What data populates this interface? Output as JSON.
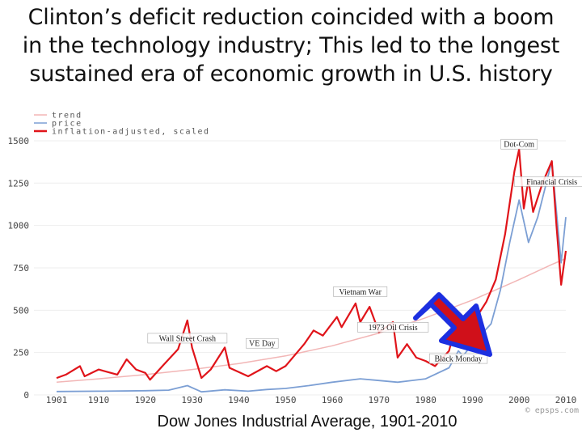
{
  "title": {
    "line1": "Clinton’s deficit reduction coincided with a boom",
    "line2": "in the technology industry; This led to the longest",
    "line3": "sustained era of economic growth in U.S. history"
  },
  "caption": "Dow Jones Industrial Average, 1901-2010",
  "credit": "© epsps.com",
  "colors": {
    "trend": "#f2b6b6",
    "price": "#7c9fd4",
    "inflation": "#e0141a",
    "arrow_fill": "#d0101a",
    "arrow_border": "#1c2fe0"
  },
  "chart_data": {
    "type": "line",
    "title": "Dow Jones Industrial Average, 1901-2010",
    "xlim": [
      1901,
      2010
    ],
    "ylim": [
      0,
      1600
    ],
    "x_ticks": [
      1901,
      1910,
      1920,
      1930,
      1940,
      1950,
      1960,
      1970,
      1980,
      1990,
      2000,
      2010
    ],
    "x_tick_labels": [
      "1901",
      "1910",
      "1920",
      "1930",
      "1940",
      "1950",
      "1960",
      "1970",
      "1980",
      "1990",
      "2000",
      "2010"
    ],
    "y_ticks": [
      0,
      250,
      500,
      750,
      1000,
      1250,
      1500
    ],
    "y_tick_labels": [
      "0",
      "250",
      "500",
      "750",
      "1000",
      "1250",
      "1500"
    ],
    "legend": {
      "position": "top-left",
      "entries": [
        "trend",
        "price",
        "inflation-adjusted, scaled"
      ]
    },
    "series": [
      {
        "name": "trend",
        "points": [
          [
            1901,
            75
          ],
          [
            1910,
            95
          ],
          [
            1920,
            120
          ],
          [
            1930,
            150
          ],
          [
            1940,
            185
          ],
          [
            1950,
            230
          ],
          [
            1960,
            290
          ],
          [
            1970,
            365
          ],
          [
            1980,
            455
          ],
          [
            1990,
            560
          ],
          [
            2000,
            680
          ],
          [
            2007,
            770
          ],
          [
            2010,
            805
          ]
        ]
      },
      {
        "name": "price",
        "points": [
          [
            1901,
            20
          ],
          [
            1910,
            22
          ],
          [
            1920,
            25
          ],
          [
            1925,
            28
          ],
          [
            1929,
            55
          ],
          [
            1932,
            18
          ],
          [
            1937,
            30
          ],
          [
            1942,
            22
          ],
          [
            1946,
            32
          ],
          [
            1950,
            38
          ],
          [
            1955,
            55
          ],
          [
            1960,
            75
          ],
          [
            1966,
            95
          ],
          [
            1970,
            85
          ],
          [
            1974,
            75
          ],
          [
            1980,
            95
          ],
          [
            1985,
            160
          ],
          [
            1987,
            260
          ],
          [
            1988,
            230
          ],
          [
            1990,
            300
          ],
          [
            1994,
            420
          ],
          [
            1996,
            620
          ],
          [
            1998,
            900
          ],
          [
            2000,
            1150
          ],
          [
            2002,
            900
          ],
          [
            2004,
            1050
          ],
          [
            2007,
            1380
          ],
          [
            2009,
            780
          ],
          [
            2010,
            1050
          ]
        ]
      },
      {
        "name": "inflation-adjusted, scaled",
        "points": [
          [
            1901,
            100
          ],
          [
            1903,
            120
          ],
          [
            1906,
            170
          ],
          [
            1907,
            110
          ],
          [
            1910,
            150
          ],
          [
            1914,
            120
          ],
          [
            1916,
            210
          ],
          [
            1918,
            150
          ],
          [
            1920,
            130
          ],
          [
            1921,
            90
          ],
          [
            1924,
            180
          ],
          [
            1927,
            270
          ],
          [
            1929,
            440
          ],
          [
            1930,
            280
          ],
          [
            1932,
            100
          ],
          [
            1934,
            150
          ],
          [
            1937,
            280
          ],
          [
            1938,
            160
          ],
          [
            1942,
            110
          ],
          [
            1946,
            170
          ],
          [
            1948,
            140
          ],
          [
            1950,
            170
          ],
          [
            1954,
            300
          ],
          [
            1956,
            380
          ],
          [
            1958,
            350
          ],
          [
            1961,
            460
          ],
          [
            1962,
            400
          ],
          [
            1965,
            540
          ],
          [
            1966,
            430
          ],
          [
            1968,
            520
          ],
          [
            1970,
            370
          ],
          [
            1973,
            430
          ],
          [
            1974,
            220
          ],
          [
            1976,
            300
          ],
          [
            1978,
            220
          ],
          [
            1980,
            200
          ],
          [
            1982,
            170
          ],
          [
            1985,
            260
          ],
          [
            1987,
            470
          ],
          [
            1988,
            350
          ],
          [
            1990,
            420
          ],
          [
            1993,
            550
          ],
          [
            1995,
            680
          ],
          [
            1997,
            950
          ],
          [
            1999,
            1320
          ],
          [
            2000,
            1450
          ],
          [
            2001,
            1100
          ],
          [
            2002,
            1270
          ],
          [
            2003,
            1080
          ],
          [
            2005,
            1250
          ],
          [
            2007,
            1380
          ],
          [
            2008,
            1000
          ],
          [
            2009,
            650
          ],
          [
            2010,
            850
          ]
        ]
      }
    ],
    "annotations": [
      {
        "text": "Dot-Com",
        "x": 2000,
        "y": 1470
      },
      {
        "text": "Financial Crisis",
        "x": 2007,
        "y": 1250
      },
      {
        "text": "Vietnam War",
        "x": 1966,
        "y": 600
      },
      {
        "text": "1973 Oil Crisis",
        "x": 1973,
        "y": 390
      },
      {
        "text": "Wall Street Crash",
        "x": 1929,
        "y": 325
      },
      {
        "text": "VE Day",
        "x": 1945,
        "y": 295
      },
      {
        "text": "Black Monday",
        "x": 1987,
        "y": 205
      }
    ]
  }
}
